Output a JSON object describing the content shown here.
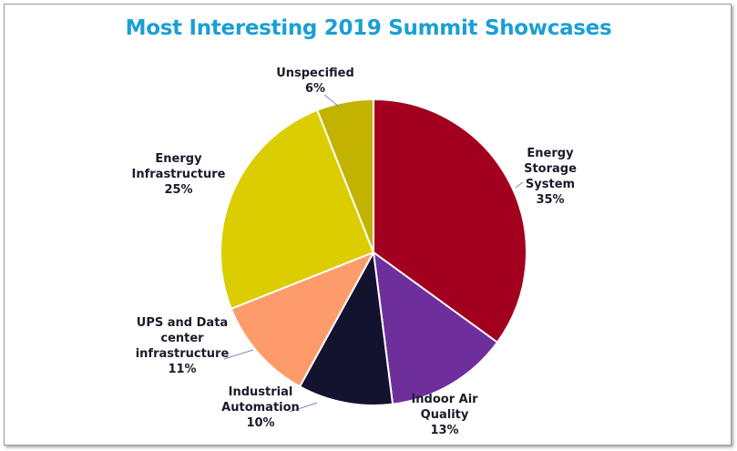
{
  "chart_data": {
    "type": "pie",
    "title": "Most Interesting 2019 Summit Showcases",
    "slices": [
      {
        "label_lines": [
          "Energy",
          "Storage",
          "System"
        ],
        "percent_label": "35%",
        "value": 35,
        "color": "#a3001f"
      },
      {
        "label_lines": [
          "Indoor Air",
          "Quality"
        ],
        "percent_label": "13%",
        "value": 13,
        "color": "#6e2f9c"
      },
      {
        "label_lines": [
          "Industrial",
          "Automation"
        ],
        "percent_label": "10%",
        "value": 10,
        "color": "#131330"
      },
      {
        "label_lines": [
          "UPS and Data",
          "center",
          "infrastructure"
        ],
        "percent_label": "11%",
        "value": 11,
        "color": "#fd9c6a"
      },
      {
        "label_lines": [
          "Energy",
          "Infrastructure"
        ],
        "percent_label": "25%",
        "value": 25,
        "color": "#dccd00"
      },
      {
        "label_lines": [
          "Unspecified"
        ],
        "percent_label": "6%",
        "value": 6,
        "color": "#c1b300"
      }
    ],
    "start_position": "top",
    "direction": "clockwise",
    "legend": "none",
    "label_lines_color": "#8a80c0"
  }
}
